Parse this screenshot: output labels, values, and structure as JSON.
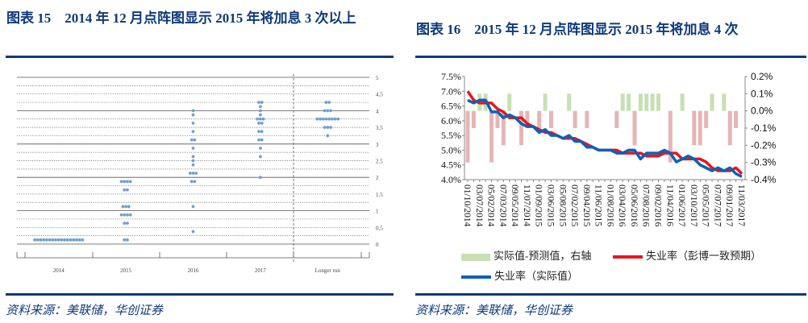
{
  "left": {
    "title": "图表 15　2014 年 12 月点阵图显示 2015 年将加息 3 次以上",
    "source": "资料来源：美联储，华创证券",
    "chart_data": {
      "type": "scatter",
      "title": "",
      "categories": [
        "2014",
        "2015",
        "2016",
        "2017",
        "Longer run"
      ],
      "ylim": [
        0,
        5
      ],
      "yticks": [
        "0",
        "0.5",
        "1",
        "1.5",
        "2",
        "2.5",
        "3",
        "3.5",
        "4",
        "4.5",
        "5"
      ],
      "dot_color": "#6fa0cf",
      "dots": [
        [
          [
            0.125,
            17
          ]
        ],
        [
          [
            0.125,
            2
          ],
          [
            0.625,
            2
          ],
          [
            0.875,
            4
          ],
          [
            1.125,
            3
          ],
          [
            1.625,
            2
          ],
          [
            1.875,
            4
          ]
        ],
        [
          [
            0.375,
            1
          ],
          [
            1.125,
            1
          ],
          [
            1.875,
            2
          ],
          [
            2.125,
            3
          ],
          [
            2.375,
            1
          ],
          [
            2.5,
            1
          ],
          [
            2.625,
            1
          ],
          [
            2.875,
            1
          ],
          [
            3.125,
            2
          ],
          [
            3.375,
            1
          ],
          [
            3.625,
            1
          ],
          [
            3.875,
            1
          ],
          [
            4.0,
            1
          ]
        ],
        [
          [
            2.0,
            1
          ],
          [
            2.625,
            1
          ],
          [
            2.875,
            1
          ],
          [
            3.125,
            2
          ],
          [
            3.375,
            2
          ],
          [
            3.625,
            2
          ],
          [
            3.75,
            3
          ],
          [
            3.875,
            1
          ],
          [
            4.0,
            1
          ],
          [
            4.125,
            1
          ],
          [
            4.25,
            2
          ]
        ],
        [
          [
            3.25,
            1
          ],
          [
            3.5,
            3
          ],
          [
            3.75,
            8
          ],
          [
            4.0,
            3
          ],
          [
            4.25,
            2
          ]
        ]
      ]
    }
  },
  "right": {
    "title": "图表 16　2015 年 12 月点阵图显示 2015 年将加息 4 次",
    "source": "资料来源：美联储，华创证券",
    "chart_data": {
      "type": "line",
      "x_labels": [
        "01/10/2014",
        "03/07/2014",
        "05/02/2014",
        "07/03/2014",
        "09/05/2014",
        "11/07/2014",
        "01/09/2015",
        "03/06/2015",
        "05/08/2015",
        "07/02/2015",
        "09/04/2015",
        "11/06/2015",
        "01/08/2016",
        "03/04/2016",
        "05/06/2016",
        "07/08/2016",
        "09/02/2016",
        "11/04/2016",
        "01/06/2017",
        "03/10/2017",
        "05/05/2017",
        "07/07/2017",
        "09/01/2017",
        "11/03/2017"
      ],
      "ylim_left": [
        4.0,
        7.5
      ],
      "ylim_right": [
        -0.4,
        0.2
      ],
      "yticks_left": [
        "4.0%",
        "4.5%",
        "5.0%",
        "5.5%",
        "6.0%",
        "6.5%",
        "7.0%",
        "7.5%"
      ],
      "yticks_right": [
        "-0.4%",
        "-0.3%",
        "-0.2%",
        "-0.1%",
        "0.0%",
        "0.1%",
        "0.2%"
      ],
      "series": [
        {
          "name": "实际值-预测值，右轴",
          "type": "bar",
          "axis": "right",
          "color_pos": "#c6e0b4",
          "color_neg": "#e6b5b5",
          "values": [
            -0.3,
            -0.1,
            0.1,
            0.1,
            -0.3,
            -0.1,
            -0.2,
            0.1,
            0,
            -0.2,
            -0.1,
            0,
            -0.1,
            0.1,
            -0.1,
            0,
            0,
            0.1,
            -0.1,
            0,
            -0.1,
            0,
            0,
            0,
            0,
            -0.1,
            0.1,
            0.1,
            -0.2,
            0.1,
            0.1,
            0.1,
            0.1,
            0,
            -0.3,
            0,
            0.1,
            0,
            -0.2,
            -0.2,
            -0.1,
            0.1,
            0,
            0.1,
            -0.2,
            -0.1,
            0
          ]
        },
        {
          "name": "失业率（彭博一致预期）",
          "type": "line",
          "axis": "left",
          "color": "#e8141c",
          "values": [
            7.0,
            6.7,
            6.6,
            6.6,
            6.6,
            6.4,
            6.3,
            6.1,
            6.1,
            6.1,
            5.9,
            5.8,
            5.7,
            5.6,
            5.6,
            5.5,
            5.4,
            5.4,
            5.4,
            5.3,
            5.2,
            5.1,
            5.0,
            5.0,
            5.0,
            5.0,
            4.9,
            4.9,
            4.9,
            4.9,
            4.8,
            4.8,
            4.8,
            4.9,
            4.9,
            4.9,
            4.7,
            4.7,
            4.7,
            4.7,
            4.6,
            4.4,
            4.3,
            4.3,
            4.3,
            4.4,
            4.2
          ]
        },
        {
          "name": "失业率（实际值）",
          "type": "line",
          "axis": "left",
          "color": "#0c61b8",
          "values": [
            6.7,
            6.6,
            6.7,
            6.7,
            6.3,
            6.3,
            6.1,
            6.2,
            6.1,
            5.9,
            5.8,
            5.8,
            5.6,
            5.7,
            5.5,
            5.5,
            5.4,
            5.5,
            5.3,
            5.3,
            5.1,
            5.1,
            5.0,
            5.0,
            5.0,
            4.9,
            4.9,
            5.0,
            5.0,
            4.7,
            4.9,
            4.9,
            4.9,
            5.0,
            4.9,
            4.6,
            4.7,
            4.8,
            4.7,
            4.5,
            4.4,
            4.3,
            4.4,
            4.3,
            4.4,
            4.2,
            4.1
          ]
        }
      ]
    }
  }
}
